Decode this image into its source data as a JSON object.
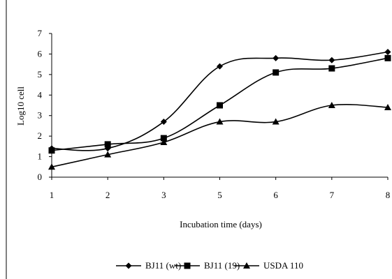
{
  "chart_data": {
    "type": "line",
    "title": "",
    "xlabel": "Incubation time (days)",
    "ylabel": "Log10 cell",
    "categories": [
      "1",
      "2",
      "3",
      "5",
      "6",
      "7",
      "8"
    ],
    "ylim": [
      0,
      7
    ],
    "yticks": [
      "0",
      "1",
      "2",
      "3",
      "4",
      "5",
      "6",
      "7"
    ],
    "grid": false,
    "legend_position": "bottom",
    "series": [
      {
        "name": "BJ11 (wt)",
        "marker": "diamond",
        "color": "#000000",
        "values": [
          1.4,
          1.4,
          2.7,
          5.4,
          5.8,
          5.7,
          6.1
        ]
      },
      {
        "name": "BJ11 (19)",
        "marker": "square",
        "color": "#000000",
        "values": [
          1.3,
          1.6,
          1.9,
          3.5,
          5.1,
          5.3,
          5.8
        ]
      },
      {
        "name": "USDA 110",
        "marker": "triangle",
        "color": "#000000",
        "values": [
          0.5,
          1.1,
          1.7,
          2.7,
          2.7,
          3.5,
          3.4
        ]
      }
    ]
  }
}
